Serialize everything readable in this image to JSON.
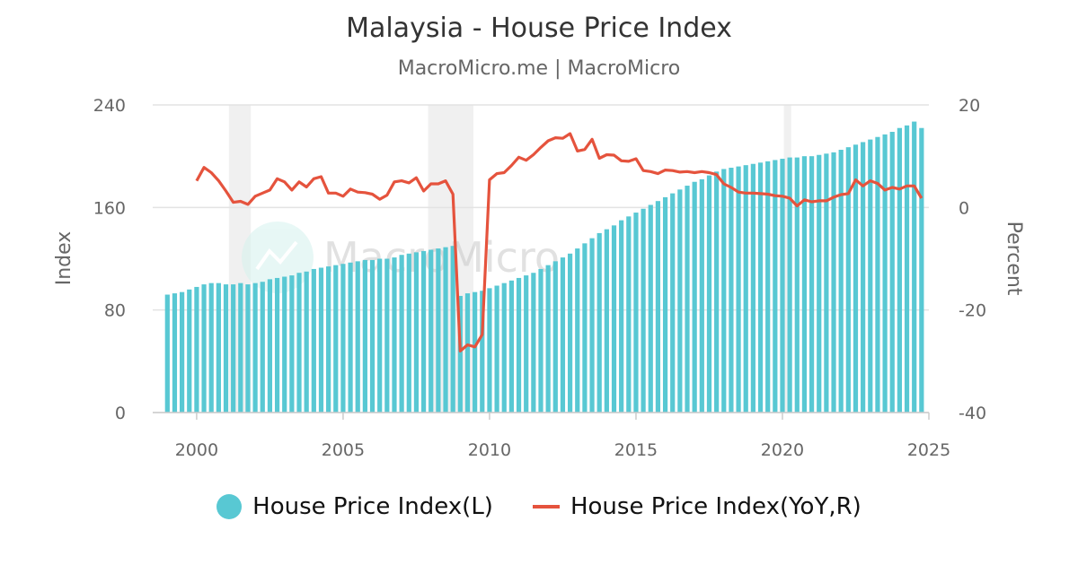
{
  "title": "Malaysia - House Price Index",
  "subtitle": "MacroMicro.me | MacroMicro",
  "watermark": "MacroMicro",
  "colors": {
    "bars": "#58c8d3",
    "line": "#e5533d",
    "grid": "#e3e3e3",
    "recession": "#f0f0f0"
  },
  "legend": [
    {
      "label": "House Price Index(L)",
      "marker": "circle",
      "color": "#58c8d3"
    },
    {
      "label": "House Price Index(YoY,R)",
      "marker": "line",
      "color": "#e5533d"
    }
  ],
  "chart_data": {
    "type": "bar+line",
    "xlabel": "",
    "ylabel_left": "Index",
    "ylabel_right": "Percent",
    "xlim": [
      1998.5,
      2025.0
    ],
    "ylim_left": [
      0,
      240
    ],
    "ylim_right": [
      -40,
      20
    ],
    "xticks": [
      2000,
      2005,
      2010,
      2015,
      2020,
      2025
    ],
    "yticks_left": [
      0,
      80,
      160,
      240
    ],
    "yticks_right": [
      -40,
      -20,
      0,
      20
    ],
    "grid": true,
    "legend_position": "bottom",
    "shaded_periods": [
      [
        2001.1,
        2001.85
      ],
      [
        2007.9,
        2009.45
      ],
      [
        2020.05,
        2020.3
      ]
    ],
    "series": [
      {
        "name": "House Price Index(L)",
        "type": "bar",
        "axis": "left",
        "x": [
          1999.0,
          1999.25,
          1999.5,
          1999.75,
          2000.0,
          2000.25,
          2000.5,
          2000.75,
          2001.0,
          2001.25,
          2001.5,
          2001.75,
          2002.0,
          2002.25,
          2002.5,
          2002.75,
          2003.0,
          2003.25,
          2003.5,
          2003.75,
          2004.0,
          2004.25,
          2004.5,
          2004.75,
          2005.0,
          2005.25,
          2005.5,
          2005.75,
          2006.0,
          2006.25,
          2006.5,
          2006.75,
          2007.0,
          2007.25,
          2007.5,
          2007.75,
          2008.0,
          2008.25,
          2008.5,
          2008.75,
          2009.0,
          2009.25,
          2009.5,
          2009.75,
          2010.0,
          2010.25,
          2010.5,
          2010.75,
          2011.0,
          2011.25,
          2011.5,
          2011.75,
          2012.0,
          2012.25,
          2012.5,
          2012.75,
          2013.0,
          2013.25,
          2013.5,
          2013.75,
          2014.0,
          2014.25,
          2014.5,
          2014.75,
          2015.0,
          2015.25,
          2015.5,
          2015.75,
          2016.0,
          2016.25,
          2016.5,
          2016.75,
          2017.0,
          2017.25,
          2017.5,
          2017.75,
          2018.0,
          2018.25,
          2018.5,
          2018.75,
          2019.0,
          2019.25,
          2019.5,
          2019.75,
          2020.0,
          2020.25,
          2020.5,
          2020.75,
          2021.0,
          2021.25,
          2021.5,
          2021.75,
          2022.0,
          2022.25,
          2022.5,
          2022.75,
          2023.0,
          2023.25,
          2023.5,
          2023.75,
          2024.0,
          2024.25,
          2024.5,
          2024.75
        ],
        "values": [
          92,
          93,
          94,
          96,
          98,
          100,
          101,
          101,
          100,
          100,
          101,
          100,
          101,
          102,
          104,
          105,
          106,
          107,
          109,
          110,
          112,
          113,
          114,
          115,
          116,
          117,
          118,
          119,
          119,
          120,
          120,
          121,
          123,
          124,
          125,
          126,
          127,
          128,
          129,
          130,
          91,
          93,
          94,
          95,
          97,
          99,
          101,
          103,
          105,
          107,
          109,
          112,
          115,
          118,
          121,
          124,
          128,
          132,
          136,
          140,
          143,
          146,
          150,
          153,
          156,
          159,
          162,
          165,
          168,
          171,
          174,
          177,
          180,
          182,
          185,
          188,
          190,
          191,
          192,
          193,
          194,
          195,
          196,
          197,
          198,
          199,
          199,
          200,
          200,
          201,
          202,
          203,
          205,
          207,
          209,
          211,
          213,
          215,
          217,
          219,
          222,
          224,
          227,
          222
        ]
      },
      {
        "name": "House Price Index(YoY,R)",
        "type": "line",
        "axis": "right",
        "x": [
          2000.0,
          2000.25,
          2000.5,
          2000.75,
          2001.0,
          2001.25,
          2001.5,
          2001.75,
          2002.0,
          2002.25,
          2002.5,
          2002.75,
          2003.0,
          2003.25,
          2003.5,
          2003.75,
          2004.0,
          2004.25,
          2004.5,
          2004.75,
          2005.0,
          2005.25,
          2005.5,
          2005.75,
          2006.0,
          2006.25,
          2006.5,
          2006.75,
          2007.0,
          2007.25,
          2007.5,
          2007.75,
          2008.0,
          2008.25,
          2008.5,
          2008.75,
          2009.0,
          2009.25,
          2009.5,
          2009.75,
          2010.0,
          2010.25,
          2010.5,
          2010.75,
          2011.0,
          2011.25,
          2011.5,
          2011.75,
          2012.0,
          2012.25,
          2012.5,
          2012.75,
          2013.0,
          2013.25,
          2013.5,
          2013.75,
          2014.0,
          2014.25,
          2014.5,
          2014.75,
          2015.0,
          2015.25,
          2015.5,
          2015.75,
          2016.0,
          2016.25,
          2016.5,
          2016.75,
          2017.0,
          2017.25,
          2017.5,
          2017.75,
          2018.0,
          2018.25,
          2018.5,
          2018.75,
          2019.0,
          2019.25,
          2019.5,
          2019.75,
          2020.0,
          2020.25,
          2020.5,
          2020.75,
          2021.0,
          2021.25,
          2021.5,
          2021.75,
          2022.0,
          2022.25,
          2022.5,
          2022.75,
          2023.0,
          2023.25,
          2023.5,
          2023.75,
          2024.0,
          2024.25,
          2024.5,
          2024.75
        ],
        "values": [
          5.2,
          7.8,
          6.8,
          5.2,
          3.2,
          1.0,
          1.2,
          0.6,
          2.2,
          2.8,
          3.4,
          5.6,
          5.0,
          3.4,
          5.0,
          4.0,
          5.6,
          6.0,
          2.8,
          2.8,
          2.2,
          3.6,
          3.0,
          2.9,
          2.6,
          1.6,
          2.4,
          5.0,
          5.2,
          4.8,
          5.8,
          3.2,
          4.6,
          4.6,
          5.2,
          2.6,
          -28.0,
          -26.8,
          -27.2,
          -24.8,
          5.4,
          6.6,
          6.8,
          8.2,
          9.8,
          9.2,
          10.3,
          11.7,
          13.0,
          13.6,
          13.5,
          14.4,
          11.0,
          11.3,
          13.3,
          9.6,
          10.3,
          10.2,
          9.1,
          9.0,
          9.5,
          7.2,
          7.0,
          6.6,
          7.3,
          7.2,
          6.9,
          7.0,
          6.8,
          7.0,
          6.8,
          6.4,
          4.6,
          3.9,
          3.0,
          2.8,
          2.8,
          2.7,
          2.6,
          2.3,
          2.2,
          1.8,
          0.3,
          1.5,
          1.1,
          1.3,
          1.3,
          2.0,
          2.5,
          2.7,
          5.4,
          4.2,
          5.2,
          4.7,
          3.4,
          3.9,
          3.6,
          4.2,
          4.2,
          1.8
        ]
      }
    ]
  }
}
